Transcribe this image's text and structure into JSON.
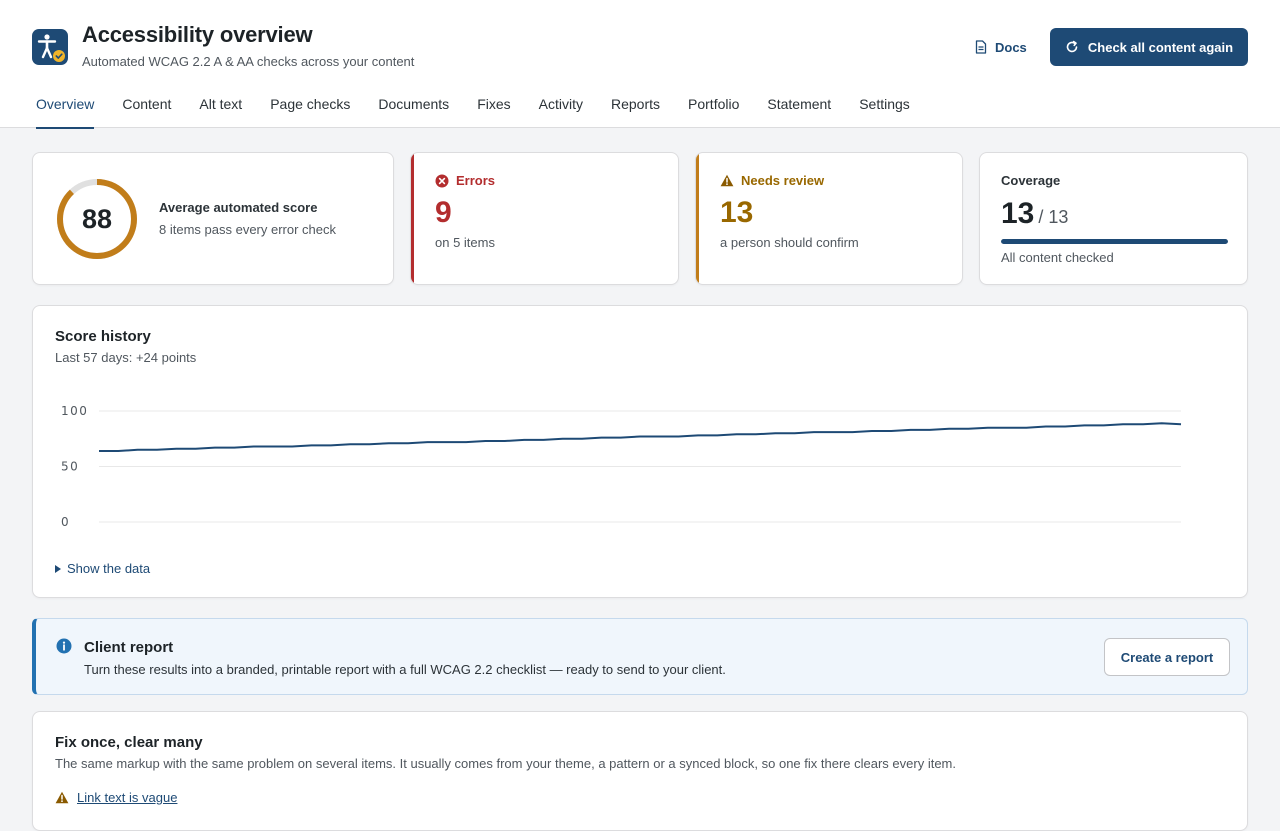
{
  "header": {
    "title": "Accessibility overview",
    "subtitle": "Automated WCAG 2.2 A & AA checks across your content",
    "app_icon": "accessibility-person-icon",
    "docs_label": "Docs",
    "docs_icon": "document-icon",
    "recheck_label": "Check all content again",
    "recheck_icon": "refresh-icon"
  },
  "tabs": [
    {
      "label": "Overview",
      "active": true
    },
    {
      "label": "Content"
    },
    {
      "label": "Alt text"
    },
    {
      "label": "Page checks"
    },
    {
      "label": "Documents"
    },
    {
      "label": "Fixes"
    },
    {
      "label": "Activity"
    },
    {
      "label": "Reports"
    },
    {
      "label": "Portfolio"
    },
    {
      "label": "Statement"
    },
    {
      "label": "Settings"
    }
  ],
  "score": {
    "value": "88",
    "percent": 88,
    "label": "Average automated score",
    "sub": "8 items pass every error check"
  },
  "errors": {
    "label": "Errors",
    "count": "9",
    "sub": "on 5 items",
    "icon": "error-x-icon",
    "color": "#b32d2e"
  },
  "review": {
    "label": "Needs review",
    "count": "13",
    "sub": "a person should confirm",
    "icon": "warning-icon",
    "color": "#996800"
  },
  "coverage": {
    "label": "Coverage",
    "checked": "13",
    "total": "/ 13",
    "fraction": 1.0,
    "sub": "All content checked"
  },
  "history": {
    "title": "Score history",
    "sub": "Last 57 days: +24 points",
    "show_data_label": "Show the data"
  },
  "chart_data": {
    "type": "line",
    "title": "Score history",
    "xlabel": "",
    "ylabel": "",
    "ylim": [
      0,
      100
    ],
    "yticks": [
      "100",
      "50",
      "0"
    ],
    "grid": true,
    "series": [
      {
        "values": [
          64,
          64,
          65,
          65,
          66,
          66,
          67,
          67,
          68,
          68,
          68,
          69,
          69,
          70,
          70,
          71,
          71,
          72,
          72,
          72,
          73,
          73,
          74,
          74,
          75,
          75,
          76,
          76,
          77,
          77,
          77,
          78,
          78,
          79,
          79,
          80,
          80,
          81,
          81,
          81,
          82,
          82,
          83,
          83,
          84,
          84,
          85,
          85,
          85,
          86,
          86,
          87,
          87,
          88,
          88,
          89,
          88
        ]
      }
    ],
    "colors": [
      "#1e4a75"
    ]
  },
  "notice": {
    "title": "Client report",
    "text": "Turn these results into a branded, printable report with a full WCAG 2.2 checklist — ready to send to your client.",
    "button": "Create a report",
    "icon": "info-icon"
  },
  "fix": {
    "title": "Fix once, clear many",
    "sub": "The same markup with the same problem on several items. It usually comes from your theme, a pattern or a synced block, so one fix there clears every item.",
    "first_issue": "Link text is vague",
    "first_issue_icon": "warning-icon"
  },
  "colors": {
    "accent": "#1e4a75",
    "score_ring": "#c17d1a",
    "error": "#b32d2e",
    "warning": "#996800",
    "info": "#2271b1"
  }
}
